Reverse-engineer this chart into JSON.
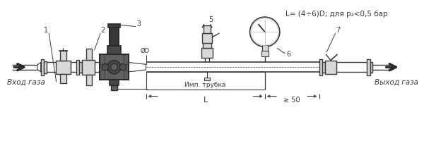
{
  "bg_color": "#ffffff",
  "line_color": "#3a3a3a",
  "dark_color": "#2a2a2a",
  "med_gray": "#606060",
  "light_gray": "#b0b0b0",
  "very_light": "#d8d8d8",
  "formula_text": "L= (4÷6)D; для p₂<0,5 бар",
  "label_vhod": "Вход газа",
  "label_vyhod": "Выход газа",
  "label_imp": "Имп. трубка",
  "label_L": "L",
  "label_ge50": "≥ 50",
  "label_D": "ØD"
}
